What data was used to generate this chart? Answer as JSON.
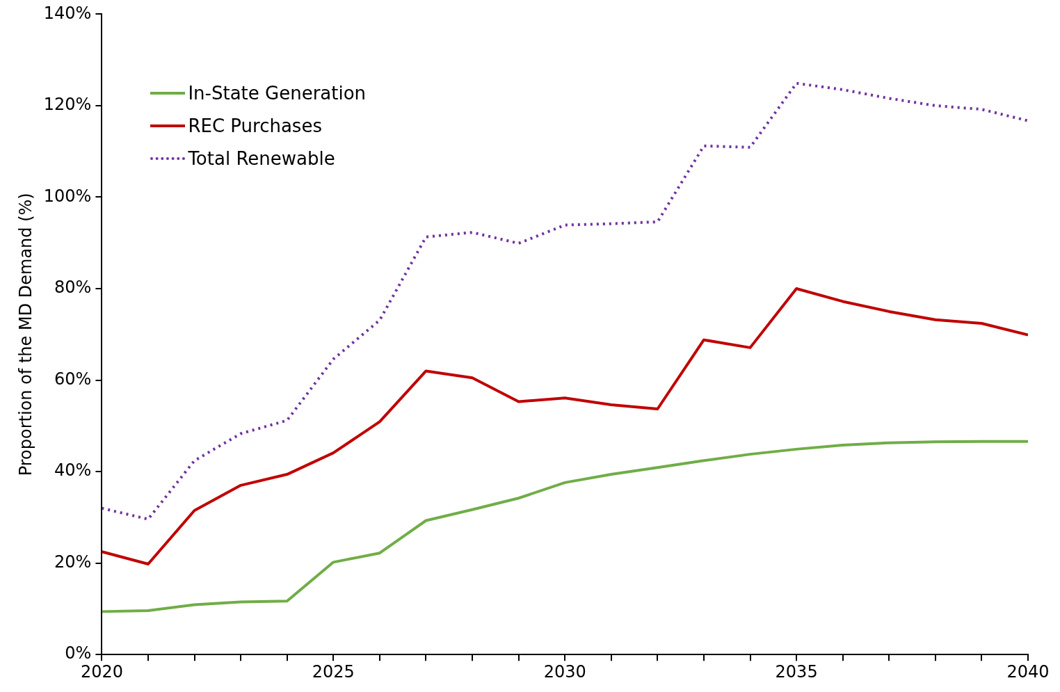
{
  "chart_data": {
    "type": "line",
    "ylabel": "Proportion of the MD Demand (%)",
    "x": [
      2020,
      2021,
      2022,
      2023,
      2024,
      2025,
      2026,
      2027,
      2028,
      2029,
      2030,
      2031,
      2032,
      2033,
      2034,
      2035,
      2036,
      2037,
      2038,
      2039,
      2040
    ],
    "series": [
      {
        "name": "In-State Generation",
        "color": "#70ad47",
        "line_style": "solid",
        "values": [
          9.4,
          9.6,
          10.9,
          11.5,
          11.7,
          20.2,
          22.2,
          29.3,
          31.7,
          34.2,
          37.6,
          39.4,
          40.9,
          42.4,
          43.8,
          44.9,
          45.8,
          46.3,
          46.5,
          46.6,
          46.6
        ]
      },
      {
        "name": "REC Purchases",
        "color": "#c00000",
        "line_style": "solid",
        "values": [
          22.5,
          19.8,
          31.5,
          37.0,
          39.4,
          44.1,
          50.9,
          62.0,
          60.5,
          55.3,
          56.1,
          54.6,
          53.7,
          68.8,
          67.1,
          80.0,
          77.2,
          75.0,
          73.2,
          72.4,
          69.9
        ]
      },
      {
        "name": "Total Renewable",
        "color": "#7030a0",
        "line_style": "dotted",
        "values": [
          32.0,
          29.6,
          42.4,
          48.3,
          51.2,
          64.6,
          73.1,
          91.3,
          92.3,
          89.9,
          93.9,
          94.2,
          94.6,
          111.2,
          110.9,
          124.9,
          123.5,
          121.6,
          120.0,
          119.2,
          116.7
        ]
      }
    ],
    "xlim": [
      2020,
      2040
    ],
    "xticks": [
      2020,
      {
        "value": 2021,
        "label": null
      },
      {
        "value": 2022,
        "label": null
      },
      {
        "value": 2023,
        "label": null
      },
      {
        "value": 2024,
        "label": null
      },
      2025,
      {
        "value": 2026,
        "label": null
      },
      {
        "value": 2027,
        "label": null
      },
      {
        "value": 2028,
        "label": null
      },
      {
        "value": 2029,
        "label": null
      },
      2030,
      {
        "value": 2031,
        "label": null
      },
      {
        "value": 2032,
        "label": null
      },
      {
        "value": 2033,
        "label": null
      },
      {
        "value": 2034,
        "label": null
      },
      2035,
      {
        "value": 2036,
        "label": null
      },
      {
        "value": 2037,
        "label": null
      },
      {
        "value": 2038,
        "label": null
      },
      {
        "value": 2039,
        "label": null
      },
      2040
    ],
    "ylim": [
      0,
      140
    ],
    "yticks": [
      {
        "value": 0,
        "label": "0%"
      },
      {
        "value": 20,
        "label": "20%"
      },
      {
        "value": 40,
        "label": "40%"
      },
      {
        "value": 60,
        "label": "60%"
      },
      {
        "value": 80,
        "label": "80%"
      },
      {
        "value": 100,
        "label": "100%"
      },
      {
        "value": 120,
        "label": "120%"
      },
      {
        "value": 140,
        "label": "140%"
      }
    ],
    "grid": false,
    "legend": "top left",
    "marker": "none"
  }
}
